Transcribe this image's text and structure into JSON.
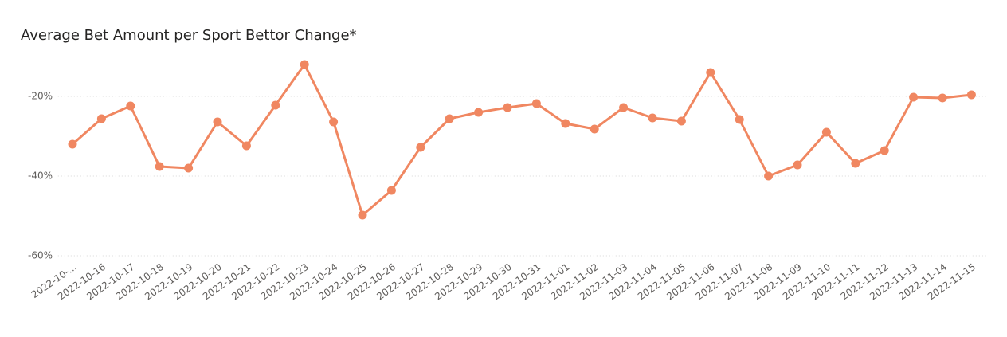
{
  "chart_data": {
    "type": "line",
    "title": "Average Bet Amount per Sport Bettor Change*",
    "categories": [
      "2022-10-...",
      "2022-10-16",
      "2022-10-17",
      "2022-10-18",
      "2022-10-19",
      "2022-10-20",
      "2022-10-21",
      "2022-10-22",
      "2022-10-23",
      "2022-10-24",
      "2022-10-25",
      "2022-10-26",
      "2022-10-27",
      "2022-10-28",
      "2022-10-29",
      "2022-10-30",
      "2022-10-31",
      "2022-11-01",
      "2022-11-02",
      "2022-11-03",
      "2022-11-04",
      "2022-11-05",
      "2022-11-06",
      "2022-11-07",
      "2022-11-08",
      "2022-11-09",
      "2022-11-10",
      "2022-11-11",
      "2022-11-12",
      "2022-11-13",
      "2022-11-14",
      "2022-11-15"
    ],
    "values": [
      -32,
      -25.6,
      -22.4,
      -37.6,
      -38,
      -26.4,
      -32.4,
      -22.2,
      -12,
      -26.4,
      -49.8,
      -43.6,
      -32.8,
      -25.6,
      -24,
      -22.8,
      -21.8,
      -26.8,
      -28.2,
      -22.8,
      -25.4,
      -26.2,
      -14,
      -25.8,
      -40,
      -37.2,
      -29,
      -36.8,
      -33.6,
      -20.2,
      -20.4,
      -19.6
    ],
    "color": "#f08761",
    "ylim": [
      -60,
      -10
    ],
    "yticks": [
      {
        "value": -60,
        "label": "-60%"
      },
      {
        "value": -40,
        "label": "-40%"
      },
      {
        "value": -20,
        "label": "-20%"
      }
    ],
    "grid": true
  }
}
